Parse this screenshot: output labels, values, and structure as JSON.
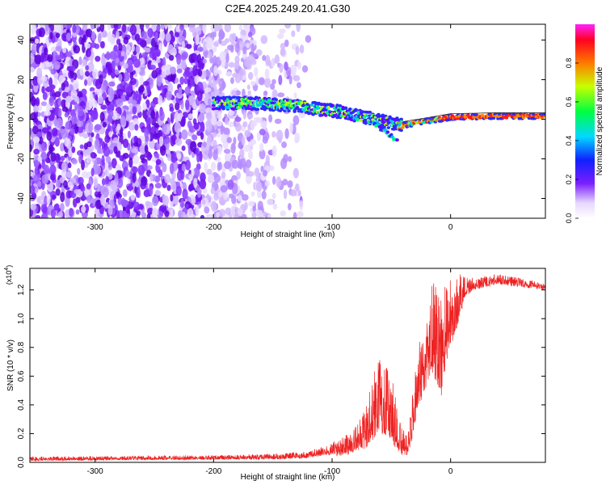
{
  "figure_title": "C2E4.2025.249.20.41.G30",
  "chart_data": [
    {
      "type": "heatmap",
      "title": "C2E4.2025.249.20.41.G30",
      "xlabel": "Height of straight line (km)",
      "ylabel": "Frequency (Hz)",
      "xlim": [
        -355,
        80
      ],
      "ylim": [
        -50,
        48
      ],
      "xticks": [
        -300,
        -200,
        -100,
        0
      ],
      "xtick_labels": [
        "-300",
        "-200",
        "-100",
        "0"
      ],
      "yticks": [
        -40,
        -20,
        0,
        20,
        40
      ],
      "ytick_labels": [
        "-40",
        "-20",
        "0",
        "20",
        "40"
      ],
      "colorbar": {
        "label": "Normalized spectral amplitude",
        "range": [
          0,
          1
        ],
        "ticks": [
          0,
          0.2,
          0.4,
          0.6,
          0.8
        ],
        "tick_labels": [
          "0.0",
          "0.2",
          "0.4",
          "0.6",
          "0.8"
        ],
        "colormap": "rainbow"
      },
      "features": {
        "noise_region_km": [
          -355,
          -130
        ],
        "signal_track": [
          {
            "x": -200,
            "y": 8
          },
          {
            "x": -160,
            "y": 8
          },
          {
            "x": -130,
            "y": 7
          },
          {
            "x": -110,
            "y": 5
          },
          {
            "x": -95,
            "y": 4
          },
          {
            "x": -80,
            "y": 2
          },
          {
            "x": -65,
            "y": 0
          },
          {
            "x": -50,
            "y": -2
          },
          {
            "x": -40,
            "y": -3
          },
          {
            "x": -20,
            "y": -1
          },
          {
            "x": 0,
            "y": 1
          },
          {
            "x": 40,
            "y": 1.5
          },
          {
            "x": 80,
            "y": 1.5
          }
        ],
        "dispersed_branch": [
          {
            "x": -65,
            "y": -2
          },
          {
            "x": -55,
            "y": -6
          },
          {
            "x": -45,
            "y": -11
          }
        ]
      }
    },
    {
      "type": "line",
      "xlabel": "Height of straight line (km)",
      "ylabel": "SNR (10 * v/v)",
      "scale_label": "(x10",
      "scale_exp": "4",
      "scale_close": ")",
      "xlim": [
        -355,
        80
      ],
      "ylim": [
        0,
        1.35
      ],
      "xticks": [
        -300,
        -200,
        -100,
        0
      ],
      "xtick_labels": [
        "-300",
        "-200",
        "-100",
        "0"
      ],
      "yticks": [
        0,
        0.2,
        0.4,
        0.6,
        0.8,
        1.0,
        1.2
      ],
      "ytick_labels": [
        "0.0",
        "0.2",
        "0.4",
        "0.6",
        "0.8",
        "1.0",
        "1.2"
      ],
      "line_color": "#ee2222",
      "envelope": {
        "x": [
          -355,
          -200,
          -150,
          -120,
          -105,
          -90,
          -80,
          -70,
          -62,
          -56,
          -50,
          -42,
          -36,
          -32,
          -28,
          -22,
          -15,
          -8,
          -4,
          0,
          6,
          12,
          20,
          30,
          40,
          50,
          60,
          70,
          80
        ],
        "low": [
          0.01,
          0.02,
          0.02,
          0.03,
          0.05,
          0.04,
          0.08,
          0.1,
          0.2,
          0.18,
          0.14,
          0.05,
          0.05,
          0.18,
          0.32,
          0.5,
          0.62,
          0.45,
          0.68,
          0.8,
          0.95,
          1.15,
          1.2,
          1.22,
          1.24,
          1.23,
          1.22,
          1.21,
          1.2
        ],
        "high": [
          0.04,
          0.05,
          0.06,
          0.08,
          0.12,
          0.18,
          0.25,
          0.42,
          0.78,
          0.7,
          0.62,
          0.25,
          0.2,
          0.5,
          0.8,
          0.95,
          1.3,
          1.2,
          1.25,
          1.3,
          1.32,
          1.3,
          1.28,
          1.3,
          1.31,
          1.3,
          1.28,
          1.26,
          1.25
        ]
      }
    }
  ]
}
